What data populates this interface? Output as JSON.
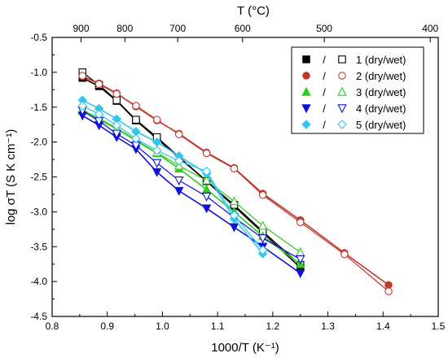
{
  "chart_data": {
    "type": "scatter",
    "xlabel": "1000/T (K⁻¹)",
    "ylabel": "log σT (S K cm⁻¹)",
    "top_xlabel": "T (°C)",
    "xlim": [
      0.8,
      1.5
    ],
    "ylim": [
      -4.5,
      -0.5
    ],
    "x_ticks": [
      0.8,
      0.9,
      1.0,
      1.1,
      1.2,
      1.3,
      1.4,
      1.5
    ],
    "y_ticks": [
      -0.5,
      -1.0,
      -1.5,
      -2.0,
      -2.5,
      -3.0,
      -3.5,
      -4.0,
      -4.5
    ],
    "x_tick_labels": [
      "0.8",
      "0.9",
      "1.0",
      "1.1",
      "1.2",
      "1.3",
      "1.4",
      "1.5"
    ],
    "y_tick_labels": [
      "-0.5",
      "-1.0",
      "-1.5",
      "-2.0",
      "-2.5",
      "-3.0",
      "-3.5",
      "-4.0",
      "-4.5"
    ],
    "top_ticks_celsius": [
      900,
      800,
      700,
      600,
      500,
      400
    ],
    "top_tick_labels": [
      "900",
      "800",
      "700",
      "600",
      "500",
      "400"
    ],
    "grid": false,
    "legend_position": "top-right",
    "legend_separator": "/",
    "series": [
      {
        "name": "1 (dry/wet)",
        "color": "#000000",
        "marker": "square",
        "dry_x": [
          0.855,
          0.885,
          0.917,
          0.952,
          0.99,
          1.08,
          1.13,
          1.182,
          1.25
        ],
        "dry_y": [
          -1.08,
          -1.2,
          -1.41,
          -1.69,
          -1.95,
          -2.56,
          -2.92,
          -3.3,
          -3.8
        ],
        "wet_x": [
          0.855,
          0.885,
          0.917,
          0.952,
          0.99,
          1.08,
          1.13,
          1.182,
          1.25
        ],
        "wet_y": [
          -1.0,
          -1.18,
          -1.4,
          -1.68,
          -1.93,
          -2.56,
          -2.9,
          -3.28,
          -3.76
        ]
      },
      {
        "name": "2 (dry/wet)",
        "color": "#c0392b",
        "marker": "circle",
        "dry_x": [
          0.855,
          0.885,
          0.917,
          0.952,
          0.99,
          1.03,
          1.08,
          1.13,
          1.182,
          1.25,
          1.33,
          1.41
        ],
        "dry_y": [
          -1.06,
          -1.16,
          -1.3,
          -1.49,
          -1.69,
          -1.88,
          -2.15,
          -2.37,
          -2.74,
          -3.12,
          -3.59,
          -4.05
        ],
        "wet_x": [
          0.855,
          0.885,
          0.917,
          0.952,
          0.99,
          1.03,
          1.08,
          1.13,
          1.182,
          1.25,
          1.33,
          1.41
        ],
        "wet_y": [
          -1.05,
          -1.17,
          -1.31,
          -1.48,
          -1.68,
          -1.89,
          -2.16,
          -2.38,
          -2.76,
          -3.15,
          -3.61,
          -4.14
        ]
      },
      {
        "name": "3 (dry/wet)",
        "color": "#2ecc1f",
        "marker": "triangle-up",
        "dry_x": [
          0.855,
          0.885,
          0.917,
          0.952,
          0.99,
          1.03,
          1.08,
          1.13,
          1.182,
          1.25
        ],
        "dry_y": [
          -1.55,
          -1.68,
          -1.81,
          -1.98,
          -2.16,
          -2.38,
          -2.68,
          -3.0,
          -3.35,
          -3.75
        ],
        "wet_x": [
          0.855,
          0.885,
          0.917,
          0.952,
          0.99,
          1.03,
          1.08,
          1.13,
          1.182,
          1.25
        ],
        "wet_y": [
          -1.54,
          -1.66,
          -1.8,
          -1.97,
          -2.15,
          -2.34,
          -2.55,
          -2.85,
          -3.2,
          -3.58
        ]
      },
      {
        "name": "4 (dry/wet)",
        "color": "#1010d8",
        "marker": "triangle-down",
        "dry_x": [
          0.855,
          0.885,
          0.917,
          0.952,
          0.99,
          1.03,
          1.08,
          1.13,
          1.182,
          1.25
        ],
        "dry_y": [
          -1.62,
          -1.76,
          -1.93,
          -2.1,
          -2.43,
          -2.7,
          -2.95,
          -3.22,
          -3.5,
          -3.88
        ],
        "wet_x": [
          0.855,
          0.885,
          0.917,
          0.952,
          0.99,
          1.03,
          1.08,
          1.13,
          1.182,
          1.25
        ],
        "wet_y": [
          -1.55,
          -1.7,
          -1.88,
          -2.05,
          -2.3,
          -2.55,
          -2.78,
          -3.08,
          -3.38,
          -3.68
        ]
      },
      {
        "name": "5 (dry/wet)",
        "color": "#33c6ee",
        "marker": "diamond",
        "dry_x": [
          0.855,
          0.885,
          0.917,
          0.952,
          0.99,
          1.03,
          1.08,
          1.13,
          1.182
        ],
        "dry_y": [
          -1.4,
          -1.52,
          -1.67,
          -1.85,
          -2.0,
          -2.2,
          -2.45,
          -3.1,
          -3.6
        ],
        "wet_x": [
          0.855,
          0.885,
          0.917,
          0.952,
          0.99,
          1.03,
          1.08,
          1.13,
          1.182
        ],
        "wet_y": [
          -1.48,
          -1.6,
          -1.76,
          -1.95,
          -2.12,
          -2.27,
          -2.42,
          -3.05,
          -3.55
        ]
      }
    ]
  }
}
